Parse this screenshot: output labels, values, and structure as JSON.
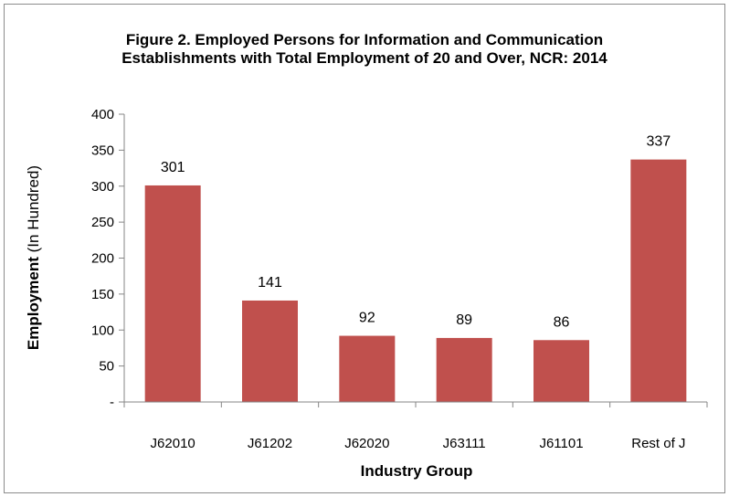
{
  "chart_data": {
    "type": "bar",
    "title_lines": [
      "Figure 2. Employed Persons for Information and Communication",
      "Establishments with Total Employment of 20 and Over, NCR: 2014"
    ],
    "xlabel": "Industry Group",
    "ylabel_main": "Employment",
    "ylabel_unit": " (In Hundred)",
    "categories": [
      "J62010",
      "J61202",
      "J62020",
      "J63111",
      "J61101",
      "Rest of J"
    ],
    "values": [
      301,
      141,
      92,
      89,
      86,
      337
    ],
    "data_labels": [
      "301",
      "141",
      "92",
      "89",
      "86",
      "337"
    ],
    "ylim": [
      0,
      400
    ],
    "y_ticks": [
      0,
      50,
      100,
      150,
      200,
      250,
      300,
      350,
      400
    ],
    "y_tick_labels": [
      "-",
      "50",
      "100",
      "150",
      "200",
      "250",
      "300",
      "350",
      "400"
    ],
    "grid": false,
    "legend": "none",
    "colors": {
      "bar": "#c0504d",
      "axis": "#868686"
    }
  }
}
